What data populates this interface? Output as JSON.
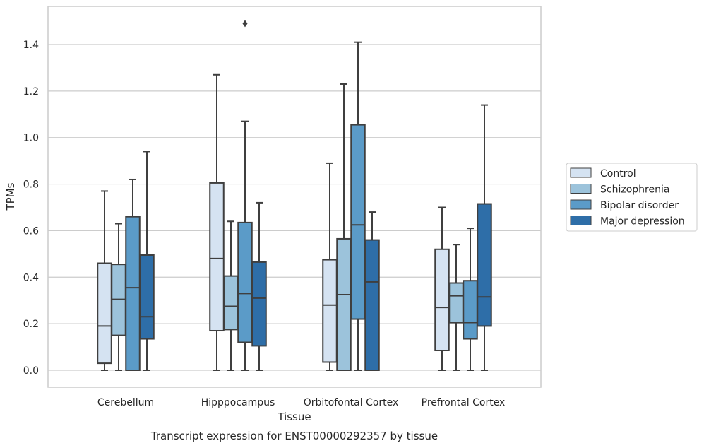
{
  "chart_data": {
    "type": "boxplot",
    "xlabel": "Tissue",
    "ylabel": "TPMs",
    "caption": "Transcript expression for ENST00000292357 by tissue",
    "ylim": [
      -0.07,
      1.57
    ],
    "yticks": [
      0.0,
      0.2,
      0.4,
      0.6,
      0.8,
      1.0,
      1.2,
      1.4
    ],
    "ytick_labels": [
      "0.0",
      "0.2",
      "0.4",
      "0.6",
      "0.8",
      "1.0",
      "1.2",
      "1.4"
    ],
    "grid": "horizontal",
    "legend_position": "right",
    "categories": [
      "Cerebellum",
      "Hipppocampus",
      "Orbitofontal Cortex",
      "Prefrontal Cortex"
    ],
    "series": [
      {
        "name": "Control",
        "color": "#d5e3f2",
        "boxes": [
          {
            "whislo": 0.0,
            "q1": 0.03,
            "med": 0.19,
            "q3": 0.46,
            "whishi": 0.77
          },
          {
            "whislo": 0.0,
            "q1": 0.17,
            "med": 0.48,
            "q3": 0.805,
            "whishi": 1.27
          },
          {
            "whislo": 0.0,
            "q1": 0.035,
            "med": 0.28,
            "q3": 0.475,
            "whishi": 0.89
          },
          {
            "whislo": 0.0,
            "q1": 0.085,
            "med": 0.27,
            "q3": 0.52,
            "whishi": 0.7
          }
        ]
      },
      {
        "name": "Schizophrenia",
        "color": "#9cc3db",
        "boxes": [
          {
            "whislo": 0.0,
            "q1": 0.15,
            "med": 0.305,
            "q3": 0.455,
            "whishi": 0.63
          },
          {
            "whislo": 0.0,
            "q1": 0.175,
            "med": 0.275,
            "q3": 0.405,
            "whishi": 0.64
          },
          {
            "whislo": 0.0,
            "q1": 0.0,
            "med": 0.325,
            "q3": 0.565,
            "whishi": 1.23
          },
          {
            "whislo": 0.0,
            "q1": 0.205,
            "med": 0.32,
            "q3": 0.375,
            "whishi": 0.54
          }
        ]
      },
      {
        "name": "Bipolar disorder",
        "color": "#5b9bc8",
        "boxes": [
          {
            "whislo": 0.0,
            "q1": 0.0,
            "med": 0.355,
            "q3": 0.66,
            "whishi": 0.82
          },
          {
            "whislo": 0.0,
            "q1": 0.12,
            "med": 0.33,
            "q3": 0.635,
            "whishi": 1.07,
            "fliers": [
              1.49
            ]
          },
          {
            "whislo": 0.0,
            "q1": 0.22,
            "med": 0.625,
            "q3": 1.055,
            "whishi": 1.41
          },
          {
            "whislo": 0.0,
            "q1": 0.135,
            "med": 0.205,
            "q3": 0.385,
            "whishi": 0.61
          }
        ]
      },
      {
        "name": "Major depression",
        "color": "#2e6ea8",
        "boxes": [
          {
            "whislo": 0.0,
            "q1": 0.135,
            "med": 0.23,
            "q3": 0.495,
            "whishi": 0.94
          },
          {
            "whislo": 0.0,
            "q1": 0.105,
            "med": 0.31,
            "q3": 0.465,
            "whishi": 0.72
          },
          {
            "whislo": 0.0,
            "q1": 0.0,
            "med": 0.38,
            "q3": 0.56,
            "whishi": 0.68
          },
          {
            "whislo": 0.0,
            "q1": 0.19,
            "med": 0.315,
            "q3": 0.715,
            "whishi": 1.14
          }
        ]
      }
    ]
  }
}
